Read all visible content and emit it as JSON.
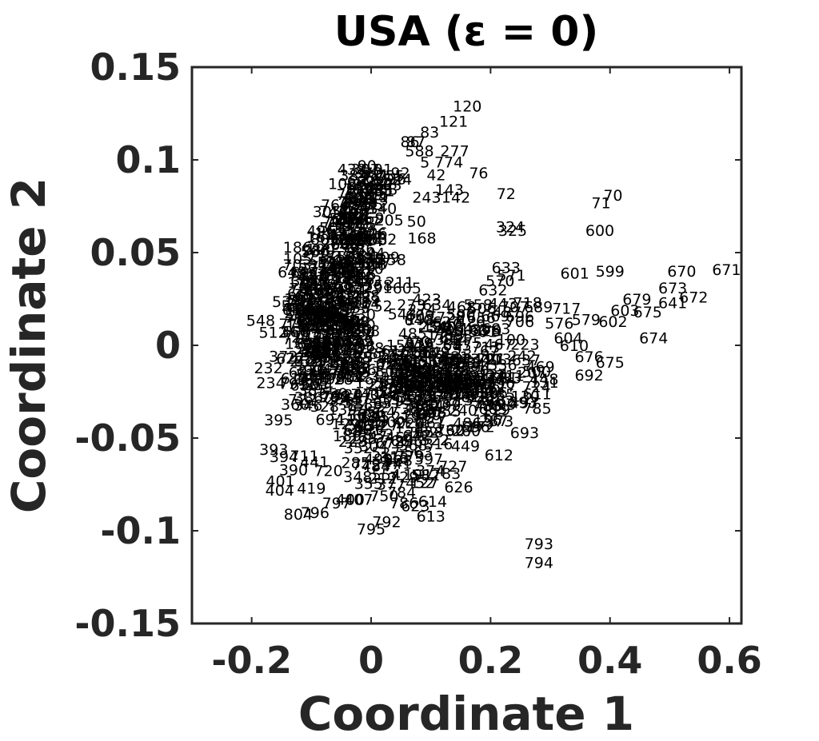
{
  "chart_data": {
    "type": "scatter",
    "title": "USA (ε = 0)",
    "xlabel": "Coordinate 1",
    "ylabel": "Coordinate 2",
    "xlim": [
      -0.3,
      0.62
    ],
    "ylim": [
      -0.15,
      0.15
    ],
    "xticks": [
      -0.2,
      0,
      0.2,
      0.4,
      0.6
    ],
    "xtick_labels": [
      "-0.2",
      "0",
      "0.2",
      "0.4",
      "0.6"
    ],
    "yticks": [
      -0.15,
      -0.1,
      -0.05,
      0,
      0.05,
      0.1,
      0.15
    ],
    "ytick_labels": [
      "-0.15",
      "-0.1",
      "-0.05",
      "0",
      "0.05",
      "0.1",
      "0.15"
    ],
    "grid": false,
    "marker": "text-label",
    "points": [
      {
        "label": "120",
        "x": 0.161,
        "y": 0.129
      },
      {
        "label": "121",
        "x": 0.138,
        "y": 0.121
      },
      {
        "label": "83",
        "x": 0.098,
        "y": 0.115
      },
      {
        "label": "86",
        "x": 0.065,
        "y": 0.11
      },
      {
        "label": "87",
        "x": 0.075,
        "y": 0.11
      },
      {
        "label": "588",
        "x": 0.081,
        "y": 0.105
      },
      {
        "label": "277",
        "x": 0.14,
        "y": 0.105
      },
      {
        "label": "5",
        "x": 0.09,
        "y": 0.099
      },
      {
        "label": "774",
        "x": 0.13,
        "y": 0.099
      },
      {
        "label": "90",
        "x": -0.007,
        "y": 0.097
      },
      {
        "label": "91",
        "x": 0.02,
        "y": 0.095
      },
      {
        "label": "92",
        "x": 0.049,
        "y": 0.093
      },
      {
        "label": "76",
        "x": 0.18,
        "y": 0.093
      },
      {
        "label": "481",
        "x": 0.006,
        "y": 0.092
      },
      {
        "label": "42",
        "x": 0.109,
        "y": 0.092
      },
      {
        "label": "37",
        "x": 0.023,
        "y": 0.087
      },
      {
        "label": "143",
        "x": 0.131,
        "y": 0.084
      },
      {
        "label": "72",
        "x": 0.226,
        "y": 0.082
      },
      {
        "label": "70",
        "x": 0.405,
        "y": 0.081
      },
      {
        "label": "142",
        "x": 0.142,
        "y": 0.08
      },
      {
        "label": "243",
        "x": 0.093,
        "y": 0.08
      },
      {
        "label": "71",
        "x": 0.385,
        "y": 0.077
      },
      {
        "label": "50",
        "x": 0.076,
        "y": 0.067
      },
      {
        "label": "324",
        "x": 0.233,
        "y": 0.064
      },
      {
        "label": "325",
        "x": 0.237,
        "y": 0.062
      },
      {
        "label": "600",
        "x": 0.383,
        "y": 0.062
      },
      {
        "label": "168",
        "x": 0.085,
        "y": 0.058
      },
      {
        "label": "38",
        "x": 0.005,
        "y": 0.047
      },
      {
        "label": "633",
        "x": 0.226,
        "y": 0.042
      },
      {
        "label": "670",
        "x": 0.52,
        "y": 0.04
      },
      {
        "label": "671",
        "x": 0.595,
        "y": 0.041
      },
      {
        "label": "601",
        "x": 0.341,
        "y": 0.039
      },
      {
        "label": "599",
        "x": 0.4,
        "y": 0.04
      },
      {
        "label": "571",
        "x": 0.235,
        "y": 0.038
      },
      {
        "label": "570",
        "x": 0.216,
        "y": 0.035
      },
      {
        "label": "211",
        "x": 0.048,
        "y": 0.034
      },
      {
        "label": "605",
        "x": 0.06,
        "y": 0.031
      },
      {
        "label": "632",
        "x": 0.204,
        "y": 0.03
      },
      {
        "label": "673",
        "x": 0.505,
        "y": 0.031
      },
      {
        "label": "672",
        "x": 0.54,
        "y": 0.026
      },
      {
        "label": "679",
        "x": 0.445,
        "y": 0.025
      },
      {
        "label": "641",
        "x": 0.505,
        "y": 0.023
      },
      {
        "label": "634",
        "x": 0.11,
        "y": 0.022
      },
      {
        "label": "558",
        "x": 0.179,
        "y": 0.022
      },
      {
        "label": "718",
        "x": 0.262,
        "y": 0.023
      },
      {
        "label": "707",
        "x": 0.24,
        "y": 0.021
      },
      {
        "label": "689",
        "x": 0.28,
        "y": 0.021
      },
      {
        "label": "717",
        "x": 0.327,
        "y": 0.02
      },
      {
        "label": "603",
        "x": 0.425,
        "y": 0.019
      },
      {
        "label": "675",
        "x": 0.463,
        "y": 0.018
      },
      {
        "label": "669",
        "x": 0.208,
        "y": 0.016
      },
      {
        "label": "543",
        "x": 0.052,
        "y": 0.017
      },
      {
        "label": "706",
        "x": 0.249,
        "y": 0.013
      },
      {
        "label": "576",
        "x": 0.315,
        "y": 0.012
      },
      {
        "label": "579",
        "x": 0.36,
        "y": 0.014
      },
      {
        "label": "602",
        "x": 0.405,
        "y": 0.013
      },
      {
        "label": "674",
        "x": 0.473,
        "y": 0.004
      },
      {
        "label": "604",
        "x": 0.33,
        "y": 0.004
      },
      {
        "label": "610",
        "x": 0.34,
        "y": 0.0
      },
      {
        "label": "676",
        "x": 0.365,
        "y": -0.006
      },
      {
        "label": "675",
        "x": 0.4,
        "y": -0.009
      },
      {
        "label": "692",
        "x": 0.365,
        "y": -0.016
      },
      {
        "label": "611",
        "x": 0.278,
        "y": -0.026
      },
      {
        "label": "605",
        "x": 0.204,
        "y": -0.034
      },
      {
        "label": "693",
        "x": 0.257,
        "y": -0.047
      },
      {
        "label": "449",
        "x": 0.158,
        "y": -0.054
      },
      {
        "label": "612",
        "x": 0.214,
        "y": -0.059
      },
      {
        "label": "727",
        "x": 0.137,
        "y": -0.065
      },
      {
        "label": "783",
        "x": 0.126,
        "y": -0.069
      },
      {
        "label": "452",
        "x": 0.082,
        "y": -0.074
      },
      {
        "label": "784",
        "x": 0.051,
        "y": -0.079
      },
      {
        "label": "614",
        "x": 0.103,
        "y": -0.084
      },
      {
        "label": "786",
        "x": 0.055,
        "y": -0.085
      },
      {
        "label": "613",
        "x": 0.1,
        "y": -0.092
      },
      {
        "label": "792",
        "x": 0.026,
        "y": -0.095
      },
      {
        "label": "795",
        "x": 0.0,
        "y": -0.099
      },
      {
        "label": "793",
        "x": 0.281,
        "y": -0.107
      },
      {
        "label": "794",
        "x": 0.281,
        "y": -0.117
      },
      {
        "label": "804",
        "x": -0.122,
        "y": -0.091
      },
      {
        "label": "796",
        "x": -0.094,
        "y": -0.09
      },
      {
        "label": "797",
        "x": -0.058,
        "y": -0.085
      },
      {
        "label": "400",
        "x": -0.035,
        "y": -0.083
      },
      {
        "label": "407",
        "x": -0.021,
        "y": -0.083
      },
      {
        "label": "401",
        "x": -0.152,
        "y": -0.073
      },
      {
        "label": "404",
        "x": -0.153,
        "y": -0.078
      },
      {
        "label": "419",
        "x": -0.1,
        "y": -0.077
      },
      {
        "label": "390",
        "x": -0.13,
        "y": -0.067
      },
      {
        "label": "393",
        "x": -0.163,
        "y": -0.056
      },
      {
        "label": "394",
        "x": -0.146,
        "y": -0.06
      },
      {
        "label": "395",
        "x": -0.155,
        "y": -0.04
      },
      {
        "label": "232",
        "x": -0.172,
        "y": -0.012
      },
      {
        "label": "234",
        "x": -0.168,
        "y": -0.02
      },
      {
        "label": "111",
        "x": -0.116,
        "y": 0.034
      },
      {
        "label": "105",
        "x": -0.123,
        "y": 0.047
      },
      {
        "label": "190",
        "x": -0.085,
        "y": 0.052
      }
    ],
    "cloud_labels": [
      "36",
      "48",
      "52",
      "55",
      "57",
      "58",
      "61",
      "62",
      "64",
      "65",
      "66",
      "67",
      "69",
      "73",
      "74",
      "75",
      "77",
      "78",
      "79",
      "80",
      "81",
      "82",
      "84",
      "85",
      "88",
      "89",
      "93",
      "94",
      "95",
      "96",
      "97",
      "98",
      "99",
      "100",
      "101",
      "102",
      "103",
      "104",
      "106",
      "107",
      "108",
      "109",
      "110",
      "112",
      "113",
      "114",
      "115",
      "116",
      "117",
      "118",
      "119",
      "122",
      "123",
      "124",
      "125",
      "126",
      "127",
      "128",
      "129",
      "130",
      "131",
      "132",
      "133",
      "134",
      "135",
      "136",
      "137",
      "138",
      "139",
      "140",
      "141",
      "144",
      "145",
      "146",
      "147",
      "148",
      "149",
      "150",
      "151",
      "152",
      "153",
      "154",
      "155",
      "156",
      "157",
      "158",
      "159",
      "160",
      "161",
      "162",
      "163",
      "164",
      "165",
      "166",
      "167",
      "169",
      "170",
      "171",
      "172",
      "173",
      "174",
      "175",
      "176",
      "177",
      "178",
      "179",
      "180",
      "181",
      "182",
      "183",
      "184",
      "185",
      "186",
      "187",
      "188",
      "189",
      "191",
      "192",
      "193",
      "194",
      "195",
      "196",
      "197",
      "198",
      "199",
      "200",
      "201",
      "202",
      "203",
      "204",
      "205",
      "206",
      "207",
      "208",
      "209",
      "210",
      "212",
      "213",
      "214",
      "215",
      "216",
      "217",
      "218",
      "219",
      "220",
      "221",
      "222",
      "223",
      "224",
      "225",
      "226",
      "227",
      "228",
      "229",
      "230",
      "231",
      "233",
      "235",
      "236",
      "237",
      "238",
      "239",
      "240",
      "241",
      "242",
      "244",
      "245",
      "246",
      "247",
      "248",
      "249",
      "250",
      "251",
      "252",
      "253",
      "254",
      "255",
      "256",
      "257",
      "258",
      "259",
      "260",
      "261",
      "262",
      "263",
      "264",
      "265",
      "266",
      "267",
      "268",
      "269",
      "270",
      "271",
      "272",
      "273",
      "274",
      "275",
      "276",
      "278",
      "279",
      "280",
      "281",
      "282",
      "283",
      "284",
      "285",
      "286",
      "287",
      "288",
      "289",
      "290",
      "291",
      "292",
      "293",
      "294",
      "295",
      "296",
      "297",
      "298",
      "299",
      "300",
      "301",
      "302",
      "303",
      "304",
      "305",
      "306",
      "307",
      "308",
      "309",
      "310",
      "311",
      "312",
      "313",
      "314",
      "315",
      "316",
      "317",
      "318",
      "319",
      "320",
      "321",
      "322",
      "323",
      "326",
      "327",
      "328",
      "329",
      "330",
      "331",
      "332",
      "333",
      "334",
      "335",
      "336",
      "337",
      "338",
      "339",
      "340",
      "341",
      "342",
      "343",
      "344",
      "345",
      "346",
      "347",
      "348",
      "349",
      "350",
      "351",
      "352",
      "353",
      "354",
      "355",
      "356",
      "357",
      "358",
      "359",
      "360",
      "361",
      "362",
      "363",
      "364",
      "365",
      "366",
      "367",
      "368",
      "369",
      "370",
      "371",
      "372",
      "373",
      "374",
      "375",
      "376",
      "377",
      "378",
      "379",
      "380",
      "381",
      "382",
      "383",
      "384",
      "385",
      "386",
      "387",
      "388",
      "389",
      "391",
      "392",
      "396",
      "397",
      "398",
      "399",
      "402",
      "403",
      "405",
      "406",
      "408",
      "409",
      "410",
      "411",
      "412",
      "413",
      "414",
      "415",
      "416",
      "417",
      "418",
      "420",
      "421",
      "422",
      "423",
      "424",
      "425",
      "426",
      "427",
      "428",
      "429",
      "430",
      "431",
      "432",
      "433",
      "434",
      "435",
      "436",
      "437",
      "438",
      "439",
      "440",
      "441",
      "442",
      "443",
      "444",
      "445",
      "446",
      "447",
      "448",
      "450",
      "451",
      "453",
      "454",
      "455",
      "456",
      "457",
      "458",
      "459",
      "460",
      "461",
      "462",
      "463",
      "464",
      "465",
      "466",
      "467",
      "468",
      "469",
      "470",
      "471",
      "472",
      "473",
      "474",
      "475",
      "476",
      "477",
      "478",
      "479",
      "480",
      "482",
      "483",
      "484",
      "485",
      "486",
      "487",
      "488",
      "489",
      "490",
      "491",
      "492",
      "493",
      "494",
      "495",
      "496",
      "497",
      "498",
      "499",
      "500",
      "501",
      "502",
      "503",
      "504",
      "505",
      "506",
      "507",
      "508",
      "509",
      "510",
      "511",
      "512",
      "513",
      "514",
      "515",
      "516",
      "517",
      "518",
      "519",
      "520",
      "521",
      "522",
      "523",
      "524",
      "525",
      "526",
      "527",
      "528",
      "529",
      "530",
      "531",
      "532",
      "533",
      "534",
      "535",
      "536",
      "537",
      "538",
      "539",
      "540",
      "541",
      "542",
      "544",
      "545",
      "546",
      "547",
      "548",
      "549",
      "550",
      "551",
      "552",
      "553",
      "554",
      "555",
      "556",
      "557",
      "559",
      "560",
      "561",
      "562",
      "563",
      "564",
      "565",
      "566",
      "567",
      "568",
      "569",
      "572",
      "573",
      "574",
      "575",
      "577",
      "578",
      "580",
      "581",
      "582",
      "583",
      "584",
      "585",
      "586",
      "587",
      "589",
      "590",
      "591",
      "592",
      "593",
      "594",
      "595",
      "596",
      "597",
      "598",
      "606",
      "607",
      "608",
      "609",
      "615",
      "616",
      "617",
      "618",
      "619",
      "620",
      "621",
      "622",
      "623",
      "624",
      "625",
      "626",
      "627",
      "628",
      "629",
      "630",
      "631",
      "635",
      "636",
      "637",
      "638",
      "639",
      "640",
      "642",
      "643",
      "644",
      "645",
      "646",
      "647",
      "648",
      "649",
      "650",
      "651",
      "652",
      "653",
      "654",
      "655",
      "656",
      "657",
      "658",
      "659",
      "660",
      "661",
      "662",
      "663",
      "664",
      "665",
      "666",
      "667",
      "668",
      "677",
      "678",
      "680",
      "681",
      "682",
      "683",
      "684",
      "685",
      "686",
      "687",
      "688",
      "690",
      "691",
      "694",
      "695",
      "696",
      "697",
      "698",
      "699",
      "700",
      "701",
      "702",
      "703",
      "704",
      "705",
      "708",
      "709",
      "710",
      "711",
      "712",
      "713",
      "714",
      "715",
      "716",
      "719",
      "720",
      "721",
      "722",
      "723",
      "724",
      "725",
      "726",
      "728",
      "729",
      "730",
      "731",
      "732",
      "733",
      "734",
      "735",
      "736",
      "737",
      "738",
      "739",
      "740",
      "741",
      "742",
      "743",
      "744",
      "745",
      "746",
      "747",
      "748",
      "749",
      "750",
      "751",
      "752",
      "753",
      "754",
      "755",
      "756",
      "757",
      "758",
      "759",
      "760",
      "761",
      "762",
      "763",
      "764",
      "765",
      "766",
      "767",
      "768",
      "769",
      "770",
      "771",
      "772",
      "773",
      "775",
      "776",
      "777",
      "778",
      "779",
      "780",
      "781",
      "782",
      "785",
      "787",
      "788",
      "789",
      "790",
      "791",
      "798",
      "799",
      "800",
      "801",
      "802",
      "803"
    ],
    "cloud_centers": [
      {
        "x": -0.07,
        "y": 0.01,
        "sx": 0.035,
        "sy": 0.02,
        "w": 0.3
      },
      {
        "x": -0.03,
        "y": 0.055,
        "sx": 0.025,
        "sy": 0.015,
        "w": 0.14
      },
      {
        "x": 0.0,
        "y": 0.082,
        "sx": 0.022,
        "sy": 0.008,
        "w": 0.06
      },
      {
        "x": 0.08,
        "y": -0.02,
        "sx": 0.06,
        "sy": 0.012,
        "w": 0.2
      },
      {
        "x": 0.18,
        "y": -0.015,
        "sx": 0.06,
        "sy": 0.012,
        "w": 0.1
      },
      {
        "x": 0.02,
        "y": -0.055,
        "sx": 0.05,
        "sy": 0.012,
        "w": 0.12
      },
      {
        "x": 0.15,
        "y": 0.01,
        "sx": 0.045,
        "sy": 0.008,
        "w": 0.08
      }
    ]
  }
}
